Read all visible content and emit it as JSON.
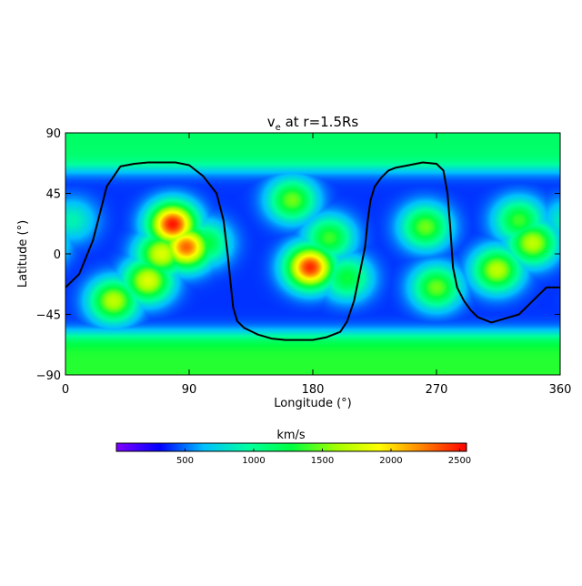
{
  "chart_data": {
    "type": "heatmap",
    "title": {
      "main": "v",
      "subscript": "e",
      "rest": " at r=1.5Rs"
    },
    "xlabel": "Longitude (°)",
    "ylabel": "Latitude (°)",
    "xlim": [
      0,
      360
    ],
    "ylim": [
      -90,
      90
    ],
    "xticks": [
      0,
      90,
      180,
      270,
      360
    ],
    "yticks": [
      90,
      45,
      0,
      -45,
      -90
    ],
    "colorbar": {
      "label": "km/s",
      "range": [
        0,
        2550
      ],
      "ticks": [
        500,
        1000,
        1500,
        2000,
        2500
      ],
      "colors": [
        "#8000ff",
        "#0000ff",
        "#00c0ff",
        "#00ffa0",
        "#00ff40",
        "#a0ff00",
        "#ffff00",
        "#ff8000",
        "#ff0000"
      ]
    },
    "background_speed": 400,
    "features": [
      {
        "name": "northern polar band",
        "lon": [
          0,
          360
        ],
        "lat_min": 63,
        "value": 1150
      },
      {
        "name": "southern polar band",
        "lon": [
          0,
          360
        ],
        "lat_max": -60,
        "value": 1350
      },
      {
        "lon": 78,
        "lat": 22,
        "value": 2500
      },
      {
        "lon": 88,
        "lat": 5,
        "value": 2300
      },
      {
        "lon": 70,
        "lat": 0,
        "value": 1800
      },
      {
        "lon": 60,
        "lat": -20,
        "value": 1800
      },
      {
        "lon": 35,
        "lat": -35,
        "value": 1700
      },
      {
        "lon": 102,
        "lat": 8,
        "value": 1300
      },
      {
        "lon": 165,
        "lat": 40,
        "value": 1500
      },
      {
        "lon": 178,
        "lat": -10,
        "value": 2450
      },
      {
        "lon": 192,
        "lat": 12,
        "value": 1400
      },
      {
        "lon": 205,
        "lat": -18,
        "value": 1300
      },
      {
        "lon": 262,
        "lat": 20,
        "value": 1500
      },
      {
        "lon": 270,
        "lat": -25,
        "value": 1500
      },
      {
        "lon": 330,
        "lat": 25,
        "value": 1400
      },
      {
        "lon": 340,
        "lat": 8,
        "value": 1700
      },
      {
        "lon": 314,
        "lat": -12,
        "value": 1700
      },
      {
        "lon": 5,
        "lat": 25,
        "value": 900
      }
    ],
    "neutral_line": {
      "lon": [
        0,
        10,
        20,
        25,
        30,
        40,
        50,
        60,
        70,
        80,
        90,
        100,
        110,
        115,
        118,
        120,
        122,
        125,
        130,
        140,
        150,
        160,
        170,
        180,
        190,
        200,
        205,
        210,
        215,
        218,
        220,
        222,
        225,
        230,
        235,
        240,
        250,
        260,
        270,
        275,
        278,
        280,
        282,
        285,
        290,
        295,
        300,
        310,
        320,
        330,
        340,
        350,
        360
      ],
      "lat": [
        -25,
        -15,
        10,
        30,
        50,
        65,
        67,
        68,
        68,
        68,
        66,
        58,
        45,
        25,
        0,
        -20,
        -40,
        -50,
        -55,
        -60,
        -63,
        -64,
        -64,
        -64,
        -62,
        -58,
        -50,
        -35,
        -10,
        5,
        25,
        40,
        50,
        57,
        62,
        64,
        66,
        68,
        67,
        62,
        45,
        20,
        -10,
        -25,
        -35,
        -42,
        -47,
        -51,
        -48,
        -45,
        -35,
        -25,
        -25
      ]
    }
  }
}
